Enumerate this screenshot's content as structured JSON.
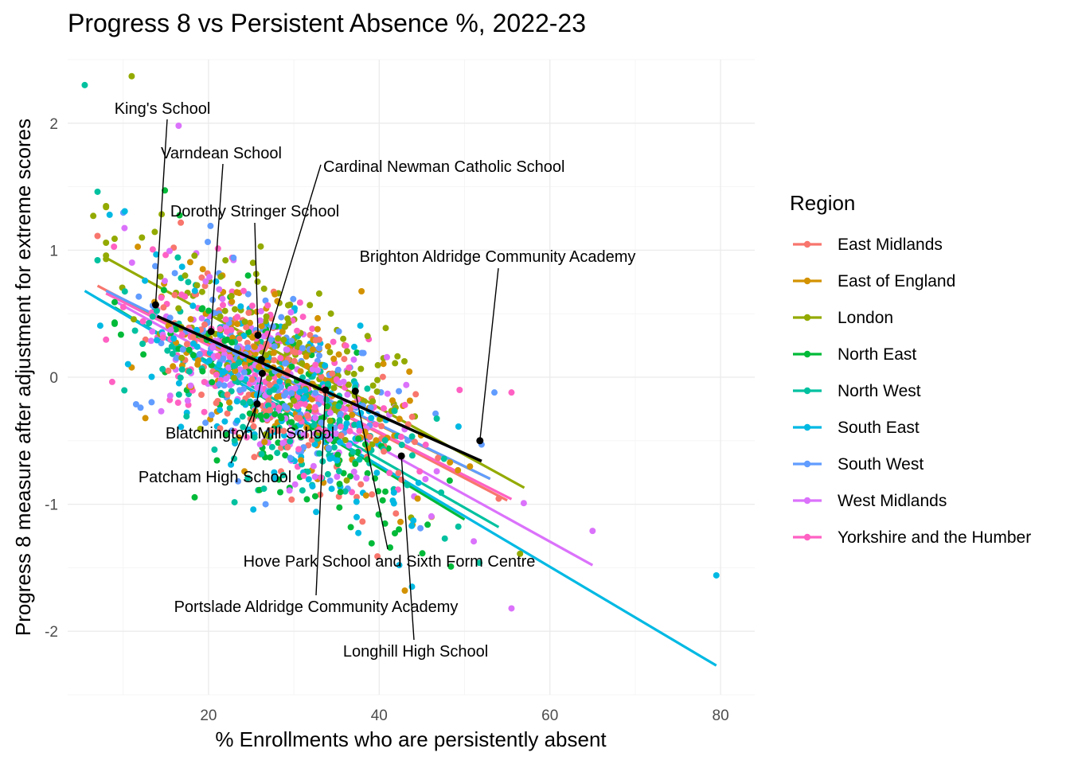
{
  "chart_data": {
    "type": "scatter",
    "title": "Progress 8 vs Persistent Absence %, 2022-23",
    "xlabel": "% Enrollments who are persistently absent",
    "ylabel": "Progress 8 measure after adjustment for extreme scores",
    "xlim": [
      3.5,
      84
    ],
    "ylim": [
      -2.5,
      2.5
    ],
    "x_ticks": [
      "20",
      "40",
      "60",
      "80"
    ],
    "y_ticks": [
      "-2",
      "-1",
      "0",
      "1",
      "2"
    ],
    "x_tick_values": [
      20,
      40,
      60,
      80
    ],
    "y_tick_values": [
      -2,
      -1,
      0,
      1,
      2
    ],
    "grid": true,
    "legend": {
      "title": "Region",
      "position": "right"
    },
    "series": [
      {
        "name": "East Midlands",
        "color": "#F8766D",
        "trend": {
          "x": [
            7,
            55
          ],
          "y": [
            0.72,
            -0.97
          ]
        }
      },
      {
        "name": "East of England",
        "color": "#D39200",
        "trend": {
          "x": [
            8,
            53
          ],
          "y": [
            0.66,
            -0.8
          ]
        }
      },
      {
        "name": "London",
        "color": "#93AA00",
        "trend": {
          "x": [
            8,
            57
          ],
          "y": [
            0.94,
            -0.87
          ]
        }
      },
      {
        "name": "North East",
        "color": "#00BA38",
        "trend": {
          "x": [
            9,
            50
          ],
          "y": [
            0.55,
            -1.12
          ]
        }
      },
      {
        "name": "North West",
        "color": "#00C19F",
        "trend": {
          "x": [
            7,
            54
          ],
          "y": [
            0.62,
            -1.18
          ]
        }
      },
      {
        "name": "South East",
        "color": "#00B9E3",
        "trend": {
          "x": [
            5.5,
            79.5
          ],
          "y": [
            0.68,
            -2.27
          ]
        }
      },
      {
        "name": "South West",
        "color": "#619CFF",
        "trend": {
          "x": [
            8,
            53
          ],
          "y": [
            0.68,
            -0.8
          ]
        }
      },
      {
        "name": "West Midlands",
        "color": "#DB72FB",
        "trend": {
          "x": [
            9,
            65
          ],
          "y": [
            0.6,
            -1.48
          ]
        }
      },
      {
        "name": "Yorkshire and the Humber",
        "color": "#FF61C3",
        "trend": {
          "x": [
            8,
            55.5
          ],
          "y": [
            0.66,
            -0.96
          ]
        }
      }
    ],
    "highlight_trend": {
      "x": [
        14,
        52
      ],
      "y": [
        0.48,
        -0.66
      ],
      "color": "#000000"
    },
    "outlier_points": [
      {
        "x": 5.5,
        "y": 2.3,
        "series": "North West"
      },
      {
        "x": 11,
        "y": 2.37,
        "series": "London"
      },
      {
        "x": 16.5,
        "y": 1.98,
        "series": "West Midlands"
      },
      {
        "x": 79.5,
        "y": -1.56,
        "series": "South East"
      },
      {
        "x": 65,
        "y": -1.21,
        "series": "West Midlands"
      },
      {
        "x": 55.5,
        "y": -1.82,
        "series": "West Midlands"
      },
      {
        "x": 56.5,
        "y": -1.39,
        "series": "London"
      },
      {
        "x": 53.5,
        "y": -0.12,
        "series": "South West"
      },
      {
        "x": 55.5,
        "y": -0.12,
        "series": "Yorkshire and the Humber"
      },
      {
        "x": 43,
        "y": -1.68,
        "series": "East of England"
      },
      {
        "x": 7,
        "y": 1.46,
        "series": "North West"
      },
      {
        "x": 6.5,
        "y": 1.27,
        "series": "London"
      },
      {
        "x": 9,
        "y": 1.09,
        "series": "London"
      }
    ],
    "annotations": [
      {
        "label": "King's School",
        "x": 13.8,
        "y": 0.57
      },
      {
        "label": "Varndean School",
        "x": 20.3,
        "y": 0.36
      },
      {
        "label": "Cardinal Newman Catholic School",
        "x": 26.2,
        "y": 0.14
      },
      {
        "label": "Dorothy Stringer School",
        "x": 25.8,
        "y": 0.33
      },
      {
        "label": "Brighton Aldridge Community Academy",
        "x": 51.8,
        "y": -0.5
      },
      {
        "label": "Blatchington Mill School",
        "x": 26.3,
        "y": 0.03
      },
      {
        "label": "Patcham High School",
        "x": 25.7,
        "y": -0.21
      },
      {
        "label": "Hove Park School and Sixth Form Centre",
        "x": 37.2,
        "y": -0.11
      },
      {
        "label": "Portslade Aldridge Community Academy",
        "x": 33.7,
        "y": -0.1
      },
      {
        "label": "Longhill High School",
        "x": 42.6,
        "y": -0.62
      }
    ],
    "random_points_note": "",
    "point_cloud": {
      "center_x": 28,
      "center_y": 0.0,
      "count_per_series": 150
    }
  }
}
